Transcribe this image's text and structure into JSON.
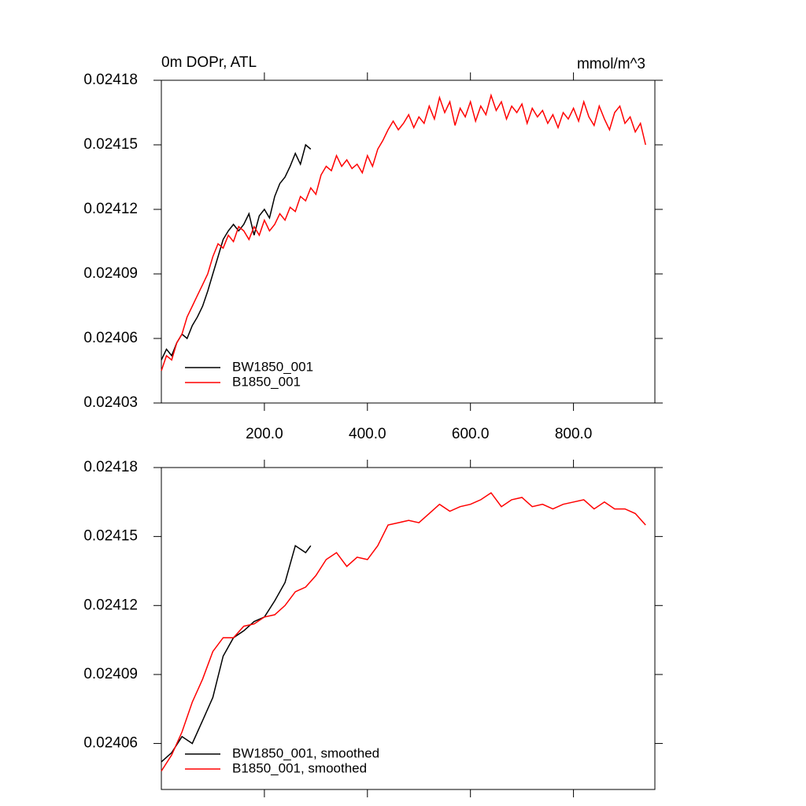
{
  "chart_data": [
    {
      "type": "line",
      "title": "0m DOPr, ATL",
      "units": "mmol/m^3",
      "xlim": [
        0,
        958
      ],
      "xticks": [
        {
          "value": 200,
          "label": "200.0"
        },
        {
          "value": 400,
          "label": "400.0"
        },
        {
          "value": 600,
          "label": "600.0"
        },
        {
          "value": 800,
          "label": "800.0"
        }
      ],
      "xtick_labels": true,
      "ylim": [
        0.02403,
        0.02418
      ],
      "yticks": [
        0.02403,
        0.02406,
        0.02409,
        0.02412,
        0.02415,
        0.02418
      ],
      "legend": "lower left",
      "series": [
        {
          "name": "BW1850_001",
          "color": "#000000",
          "x": [
            0,
            10,
            20,
            30,
            40,
            50,
            60,
            70,
            80,
            90,
            100,
            110,
            120,
            130,
            140,
            150,
            160,
            170,
            180,
            190,
            200,
            210,
            220,
            230,
            240,
            250,
            260,
            270,
            280,
            290
          ],
          "values": [
            0.02405,
            0.024055,
            0.024052,
            0.024058,
            0.024062,
            0.02406,
            0.024066,
            0.02407,
            0.024075,
            0.024082,
            0.02409,
            0.024098,
            0.024106,
            0.02411,
            0.024113,
            0.02411,
            0.024113,
            0.024118,
            0.024108,
            0.024117,
            0.02412,
            0.024116,
            0.024126,
            0.024132,
            0.024135,
            0.02414,
            0.024146,
            0.024141,
            0.02415,
            0.024148
          ]
        },
        {
          "name": "B1850_001",
          "color": "#ff0000",
          "x": [
            0,
            10,
            20,
            30,
            40,
            50,
            60,
            70,
            80,
            90,
            100,
            110,
            120,
            130,
            140,
            150,
            160,
            170,
            180,
            190,
            200,
            210,
            220,
            230,
            240,
            250,
            260,
            270,
            280,
            290,
            300,
            310,
            320,
            330,
            340,
            350,
            360,
            370,
            380,
            390,
            400,
            410,
            420,
            430,
            440,
            450,
            460,
            470,
            480,
            490,
            500,
            510,
            520,
            530,
            540,
            550,
            560,
            570,
            580,
            590,
            600,
            610,
            620,
            630,
            640,
            650,
            660,
            670,
            680,
            690,
            700,
            710,
            720,
            730,
            740,
            750,
            760,
            770,
            780,
            790,
            800,
            810,
            820,
            830,
            840,
            850,
            860,
            870,
            880,
            890,
            900,
            910,
            920,
            930,
            940
          ],
          "values": [
            0.024045,
            0.024052,
            0.02405,
            0.024058,
            0.024062,
            0.02407,
            0.024075,
            0.02408,
            0.024085,
            0.02409,
            0.024098,
            0.024104,
            0.024102,
            0.024108,
            0.024105,
            0.024112,
            0.02411,
            0.024106,
            0.024112,
            0.024108,
            0.024115,
            0.02411,
            0.024113,
            0.024118,
            0.024115,
            0.024121,
            0.024119,
            0.024126,
            0.024124,
            0.02413,
            0.024127,
            0.024136,
            0.02414,
            0.024138,
            0.024145,
            0.02414,
            0.024143,
            0.024139,
            0.024141,
            0.024137,
            0.024145,
            0.02414,
            0.024148,
            0.024152,
            0.024157,
            0.024161,
            0.024157,
            0.02416,
            0.024164,
            0.024158,
            0.024163,
            0.02416,
            0.024168,
            0.024162,
            0.024172,
            0.024165,
            0.02417,
            0.024159,
            0.024167,
            0.024163,
            0.02417,
            0.024161,
            0.024168,
            0.024164,
            0.024173,
            0.024166,
            0.02417,
            0.024162,
            0.024168,
            0.024165,
            0.024169,
            0.02416,
            0.024167,
            0.024163,
            0.024166,
            0.02416,
            0.024164,
            0.024158,
            0.024165,
            0.024162,
            0.024167,
            0.024161,
            0.02417,
            0.024163,
            0.024159,
            0.024168,
            0.024162,
            0.024157,
            0.024165,
            0.024168,
            0.02416,
            0.024163,
            0.024156,
            0.02416,
            0.02415
          ]
        }
      ]
    },
    {
      "type": "line",
      "xlim": [
        0,
        958
      ],
      "xticks": [
        200,
        400,
        600,
        800
      ],
      "xtick_labels": false,
      "ylim": [
        0.02404,
        0.02418
      ],
      "yticks": [
        0.02406,
        0.02409,
        0.02412,
        0.02415,
        0.02418
      ],
      "legend": "lower left",
      "series": [
        {
          "name": "BW1850_001, smoothed",
          "color": "#000000",
          "x": [
            0,
            20,
            40,
            60,
            80,
            100,
            120,
            140,
            160,
            180,
            200,
            220,
            240,
            260,
            280,
            290
          ],
          "values": [
            0.024052,
            0.024056,
            0.024063,
            0.02406,
            0.02407,
            0.02408,
            0.024098,
            0.024106,
            0.024109,
            0.024113,
            0.024115,
            0.024122,
            0.02413,
            0.024146,
            0.024143,
            0.024146
          ]
        },
        {
          "name": "B1850_001, smoothed",
          "color": "#ff0000",
          "x": [
            0,
            20,
            40,
            60,
            80,
            100,
            120,
            140,
            160,
            180,
            200,
            220,
            240,
            260,
            280,
            300,
            320,
            340,
            360,
            380,
            400,
            420,
            440,
            460,
            480,
            500,
            520,
            540,
            560,
            580,
            600,
            620,
            640,
            660,
            680,
            700,
            720,
            740,
            760,
            780,
            800,
            820,
            840,
            860,
            880,
            900,
            920,
            940
          ],
          "values": [
            0.024048,
            0.024055,
            0.024065,
            0.024078,
            0.024088,
            0.0241,
            0.024106,
            0.024106,
            0.024111,
            0.024112,
            0.024115,
            0.024116,
            0.02412,
            0.024126,
            0.024128,
            0.024133,
            0.02414,
            0.024143,
            0.024137,
            0.024141,
            0.02414,
            0.024146,
            0.024155,
            0.024156,
            0.024157,
            0.024156,
            0.02416,
            0.024164,
            0.024161,
            0.024163,
            0.024164,
            0.024166,
            0.024169,
            0.024163,
            0.024166,
            0.024167,
            0.024163,
            0.024164,
            0.024162,
            0.024164,
            0.024165,
            0.024166,
            0.024162,
            0.024165,
            0.024162,
            0.024162,
            0.02416,
            0.024155
          ]
        }
      ]
    }
  ]
}
